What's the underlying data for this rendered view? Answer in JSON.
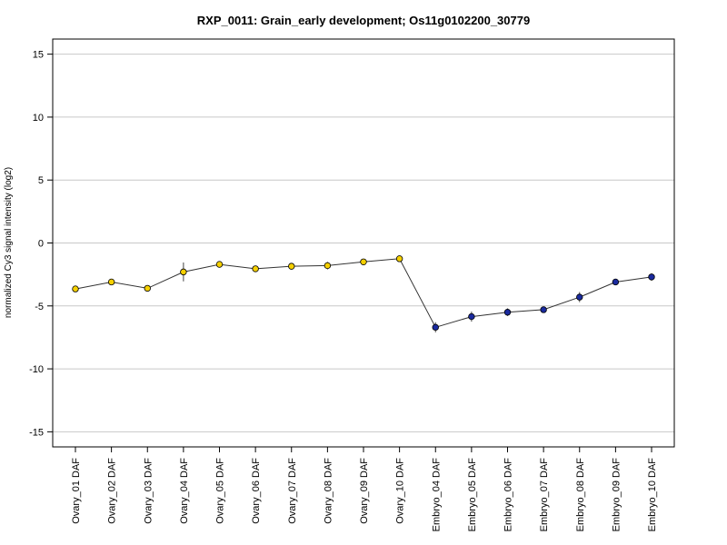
{
  "chart_data": {
    "type": "line",
    "title": "RXP_0011: Grain_early development; Os11g0102200_30779",
    "ylabel": "normalized Cy3 signal intensity (log2)",
    "xlabel": "",
    "ylim": [
      -16.2,
      16.2
    ],
    "yticks": [
      -15,
      -10,
      -5,
      0,
      5,
      10,
      15
    ],
    "grid": true,
    "categories": [
      "Ovary_01 DAF",
      "Ovary_02 DAF",
      "Ovary_03 DAF",
      "Ovary_04 DAF",
      "Ovary_05 DAF",
      "Ovary_06 DAF",
      "Ovary_07 DAF",
      "Ovary_08 DAF",
      "Ovary_09 DAF",
      "Ovary_10 DAF",
      "Embryo_04 DAF",
      "Embryo_05 DAF",
      "Embryo_06 DAF",
      "Embryo_07 DAF",
      "Embryo_08 DAF",
      "Embryo_09 DAF",
      "Embryo_10 DAF"
    ],
    "values": [
      -3.65,
      -3.1,
      -3.6,
      -2.3,
      -1.7,
      -2.05,
      -1.85,
      -1.8,
      -1.5,
      -1.25,
      -6.7,
      -5.85,
      -5.5,
      -5.3,
      -4.3,
      -3.1,
      -2.7
    ],
    "errors": [
      0.2,
      0.2,
      0.2,
      0.75,
      0.15,
      0.15,
      0.15,
      0.3,
      0.2,
      0.15,
      0.4,
      0.4,
      0.3,
      0.15,
      0.4,
      0.15,
      0.3
    ],
    "colors": {
      "ovary": "#f5d000",
      "embryo": "#1a2a9e",
      "line": "#333333",
      "grid": "#c8c8c8"
    },
    "point_groups": [
      "ovary",
      "ovary",
      "ovary",
      "ovary",
      "ovary",
      "ovary",
      "ovary",
      "ovary",
      "ovary",
      "ovary",
      "embryo",
      "embryo",
      "embryo",
      "embryo",
      "embryo",
      "embryo",
      "embryo"
    ]
  }
}
